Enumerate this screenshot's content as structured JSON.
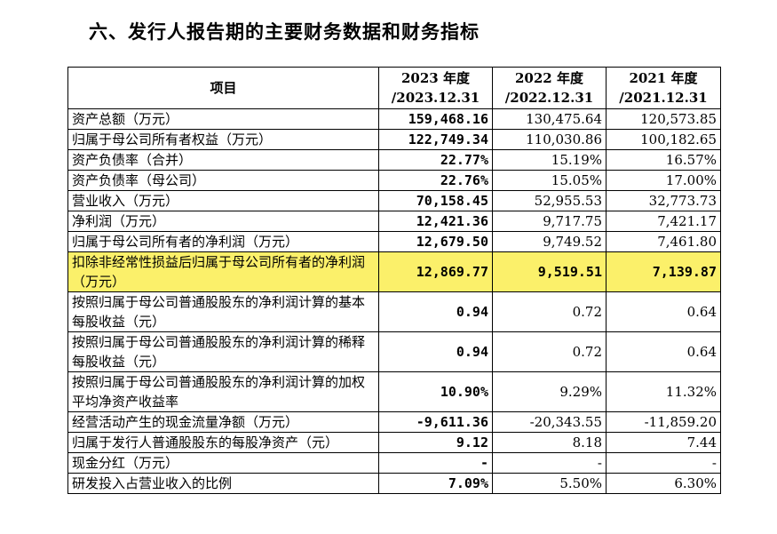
{
  "section_title": "六、发行人报告期的主要财务数据和财务指标",
  "table": {
    "header": {
      "item": "项目",
      "y2023": [
        "2023 年度",
        "/2023.12.31"
      ],
      "y2022": [
        "2022 年度",
        "/2022.12.31"
      ],
      "y2021": [
        "2021 年度",
        "/2021.12.31"
      ]
    },
    "rows": [
      {
        "label": "资产总额（万元）",
        "v2023": "159,468.16",
        "v2022": "130,475.64",
        "v2021": "120,573.85"
      },
      {
        "label": "归属于母公司所有者权益（万元）",
        "v2023": "122,749.34",
        "v2022": "110,030.86",
        "v2021": "100,182.65"
      },
      {
        "label": "资产负债率（合并）",
        "v2023": "22.77%",
        "v2022": "15.19%",
        "v2021": "16.57%"
      },
      {
        "label": "资产负债率（母公司）",
        "v2023": "22.76%",
        "v2022": "15.05%",
        "v2021": "17.00%"
      },
      {
        "label": "营业收入（万元）",
        "v2023": "70,158.45",
        "v2022": "52,955.53",
        "v2021": "32,773.73"
      },
      {
        "label": "净利润（万元）",
        "v2023": "12,421.36",
        "v2022": "9,717.75",
        "v2021": "7,421.17"
      },
      {
        "label": "归属于母公司所有者的净利润（万元）",
        "v2023": "12,679.50",
        "v2022": "9,749.52",
        "v2021": "7,461.80"
      },
      {
        "label": "扣除非经常性损益后归属于母公司所有者的净利润（万元）",
        "v2023": "12,869.77",
        "v2022": "9,519.51",
        "v2021": "7,139.87"
      },
      {
        "label": "按照归属于母公司普通股股东的净利润计算的基本每股收益（元）",
        "v2023": "0.94",
        "v2022": "0.72",
        "v2021": "0.64"
      },
      {
        "label": "按照归属于母公司普通股股东的净利润计算的稀释每股收益（元）",
        "v2023": "0.94",
        "v2022": "0.72",
        "v2021": "0.64"
      },
      {
        "label": "按照归属于母公司普通股股东的净利润计算的加权平均净资产收益率",
        "v2023": "10.90%",
        "v2022": "9.29%",
        "v2021": "11.32%"
      },
      {
        "label": "经营活动产生的现金流量净额（万元）",
        "v2023": "-9,611.36",
        "v2022": "-20,343.55",
        "v2021": "-11,859.20"
      },
      {
        "label": "归属于发行人普通股股东的每股净资产（元）",
        "v2023": "9.12",
        "v2022": "8.18",
        "v2021": "7.44"
      },
      {
        "label": "现金分红（万元）",
        "v2023": "-",
        "v2022": "-",
        "v2021": "-"
      },
      {
        "label": "研发投入占营业收入的比例",
        "v2023": "7.09%",
        "v2022": "5.50%",
        "v2021": "6.30%"
      }
    ]
  },
  "highlight_color": "#fbf06a"
}
